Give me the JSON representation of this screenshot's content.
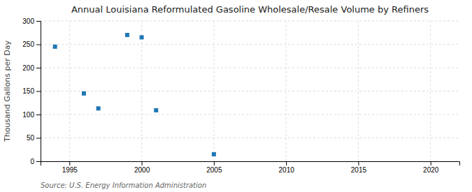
{
  "chart_data": {
    "type": "scatter",
    "title": "Annual Louisiana Reformulated Gasoline Wholesale/Resale Volume by Refiners",
    "y_label": "Thousand Gallons per Day",
    "source": "Source: U.S. Energy Information Administration",
    "x": [
      1994,
      1996,
      1997,
      1999,
      2000,
      2001,
      2005
    ],
    "values": [
      245,
      145,
      113,
      270,
      265,
      109,
      15
    ],
    "marker": "square",
    "xlim": [
      1993,
      2022
    ],
    "ylim": [
      0,
      300
    ],
    "xticks": [
      1995,
      2000,
      2005,
      2010,
      2015,
      2020
    ],
    "yticks": [
      0,
      50,
      100,
      150,
      200,
      250,
      300
    ],
    "grid": true
  }
}
